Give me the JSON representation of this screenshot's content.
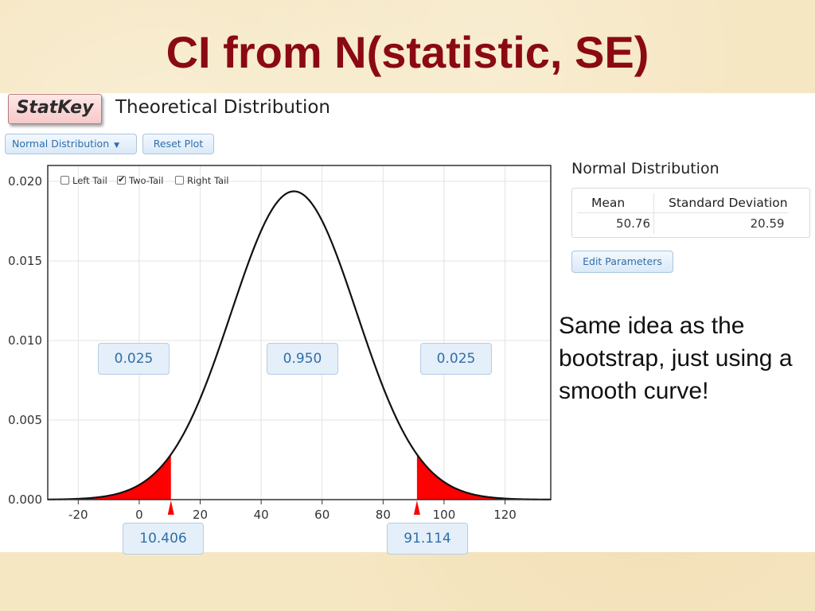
{
  "slide": {
    "title": "CI from N(statistic, SE)",
    "side_note": "Same idea as the bootstrap, just using a smooth curve!"
  },
  "app": {
    "logo": "StatKey",
    "title": "Theoretical Distribution",
    "dropdown_label": "Normal Distribution",
    "reset_label": "Reset Plot"
  },
  "tail_options": {
    "left": {
      "label": "Left Tail",
      "checked": false
    },
    "two": {
      "label": "Two-Tail",
      "checked": true
    },
    "right": {
      "label": "Right Tail",
      "checked": false
    }
  },
  "regions": {
    "left_prob": "0.025",
    "middle_prob": "0.950",
    "right_prob": "0.025",
    "lower_cutoff": "10.406",
    "upper_cutoff": "91.114"
  },
  "parameters": {
    "heading": "Normal Distribution",
    "mean_header": "Mean",
    "sd_header": "Standard Deviation",
    "mean_value": "50.76",
    "sd_value": "20.59",
    "edit_label": "Edit Parameters"
  },
  "colors": {
    "title": "#8b0a12",
    "tail_fill": "#ff0000",
    "curve": "#111111",
    "accent_blue": "#2f6fa8"
  },
  "chart_data": {
    "type": "area",
    "distribution": "normal",
    "mean": 50.76,
    "sd": 20.59,
    "xlim": [
      -30,
      135
    ],
    "ylim": [
      0,
      0.021
    ],
    "x_ticks": [
      -20,
      0,
      20,
      40,
      60,
      80,
      100,
      120
    ],
    "y_ticks": [
      0.0,
      0.005,
      0.01,
      0.015,
      0.02
    ],
    "y_tick_labels": [
      "0.000",
      "0.005",
      "0.010",
      "0.015",
      "0.020"
    ],
    "shaded_tails": {
      "lower": 10.406,
      "upper": 91.114
    },
    "grid": true
  }
}
